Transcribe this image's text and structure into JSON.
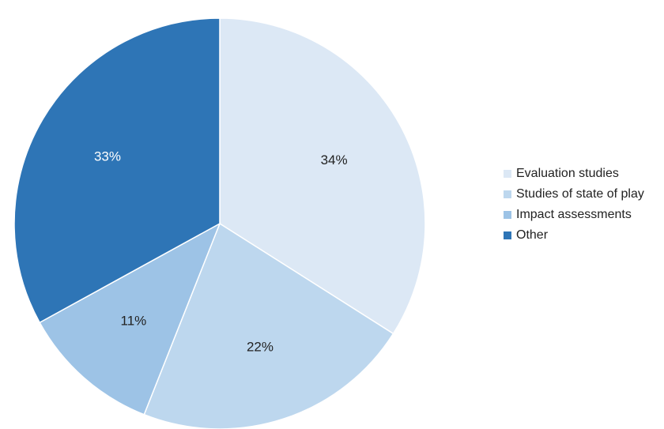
{
  "chart_data": {
    "type": "pie",
    "categories": [
      "Evaluation studies",
      "Studies of state of play",
      "Impact assessments",
      "Other"
    ],
    "values": [
      34,
      22,
      11,
      33
    ],
    "value_labels": [
      "34%",
      "22%",
      "11%",
      "33%"
    ],
    "colors": [
      "#dce8f5",
      "#bdd7ee",
      "#9dc3e6",
      "#2e75b6"
    ],
    "label_colors": [
      "#222222",
      "#222222",
      "#222222",
      "#ffffff"
    ],
    "start_angle": "12 o'clock",
    "direction": "clockwise",
    "legend_position": "right",
    "title": ""
  }
}
